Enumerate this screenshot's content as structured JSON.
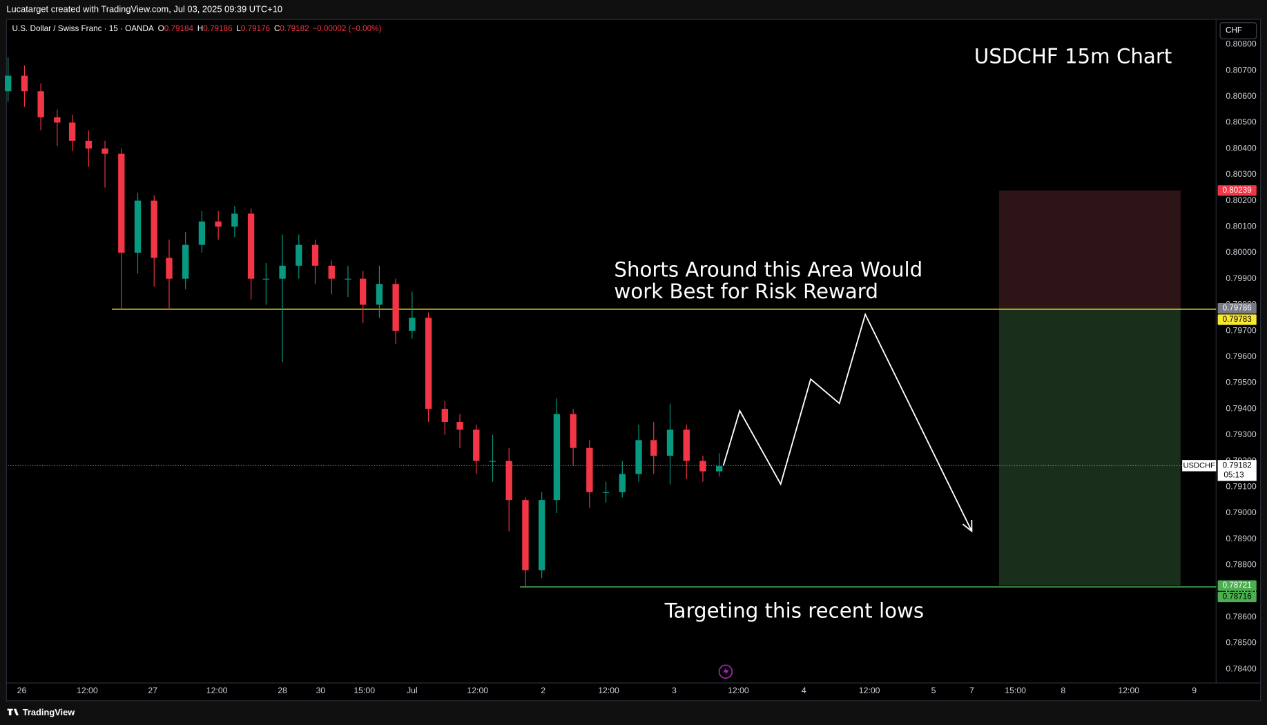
{
  "header": {
    "credit": "Lucatarget created with TradingView.com, Jul 03, 2025 09:39 UTC+10",
    "symbol": "U.S. Dollar / Swiss Franc · 15 · OANDA",
    "ohlc": [
      {
        "label": "O",
        "value": 0.79184
      },
      {
        "label": "H",
        "value": 0.79186
      },
      {
        "label": "L",
        "value": 0.79176
      },
      {
        "label": "C",
        "value": 0.79182
      }
    ],
    "change": "−0.00002 (−0.00%)",
    "currency": "CHF"
  },
  "footer": {
    "brand": "TradingView"
  },
  "chart_data": {
    "type": "candlestick",
    "title": "USDCHF 15m Chart",
    "annotations": [
      {
        "lines": [
          "Shorts Around this Area Would",
          "work Best for Risk Reward"
        ]
      },
      {
        "lines": [
          "Targeting this recent lows"
        ]
      }
    ],
    "up_color": "#089981",
    "down_color": "#f23645",
    "x": [
      0,
      12,
      24,
      36,
      47,
      59,
      71,
      83,
      95,
      107,
      118,
      130,
      142,
      154,
      166,
      178,
      189,
      201,
      213,
      225,
      237,
      249,
      260,
      272,
      284,
      296,
      308,
      320,
      331,
      343,
      355,
      367,
      379,
      391,
      402,
      414,
      426,
      438,
      450,
      462,
      473,
      485,
      497,
      509,
      521
    ],
    "open": [
      0.8062,
      0.8068,
      0.8062,
      0.8052,
      0.805,
      0.8043,
      0.804,
      0.8038,
      0.8,
      0.802,
      0.7998,
      0.799,
      0.8003,
      0.8012,
      0.801,
      0.8015,
      0.799,
      0.799,
      0.7995,
      0.8003,
      0.7995,
      0.799,
      0.799,
      0.798,
      0.7988,
      0.797,
      0.7975,
      0.794,
      0.7935,
      0.7932,
      0.792,
      0.792,
      0.7905,
      0.7878,
      0.7905,
      0.7938,
      0.7925,
      0.7908,
      0.7908,
      0.7915,
      0.7928,
      0.7922,
      0.7932,
      0.792,
      0.7916
    ],
    "high": [
      0.8075,
      0.8072,
      0.8065,
      0.8055,
      0.8053,
      0.8047,
      0.8043,
      0.804,
      0.8023,
      0.8022,
      0.8005,
      0.8008,
      0.8016,
      0.8016,
      0.8018,
      0.8017,
      0.7996,
      0.8007,
      0.8007,
      0.8005,
      0.7997,
      0.7995,
      0.7993,
      0.7995,
      0.799,
      0.7985,
      0.7977,
      0.7943,
      0.7938,
      0.7934,
      0.793,
      0.7925,
      0.7906,
      0.7908,
      0.7944,
      0.794,
      0.7928,
      0.7912,
      0.792,
      0.7934,
      0.7935,
      0.7942,
      0.7934,
      0.7922,
      0.7923
    ],
    "low": [
      0.8058,
      0.8056,
      0.8047,
      0.8041,
      0.8039,
      0.8033,
      0.8025,
      0.7978,
      0.7992,
      0.7987,
      0.7978,
      0.7986,
      0.8,
      0.8005,
      0.8006,
      0.7982,
      0.798,
      0.7958,
      0.799,
      0.7988,
      0.7984,
      0.7983,
      0.7973,
      0.7975,
      0.7965,
      0.7967,
      0.7935,
      0.793,
      0.7925,
      0.7915,
      0.7912,
      0.7893,
      0.78716,
      0.7875,
      0.79,
      0.7918,
      0.7902,
      0.7904,
      0.7906,
      0.7912,
      0.7915,
      0.7911,
      0.7913,
      0.7912,
      0.7914
    ],
    "close": [
      0.8068,
      0.8062,
      0.8052,
      0.805,
      0.8043,
      0.804,
      0.8038,
      0.8,
      0.802,
      0.7998,
      0.799,
      0.8003,
      0.8012,
      0.801,
      0.8015,
      0.799,
      0.799,
      0.7995,
      0.8003,
      0.7995,
      0.799,
      0.799,
      0.798,
      0.7988,
      0.797,
      0.7975,
      0.794,
      0.7935,
      0.7932,
      0.792,
      0.792,
      0.7905,
      0.7878,
      0.7905,
      0.7938,
      0.7925,
      0.7908,
      0.7908,
      0.7915,
      0.7928,
      0.7922,
      0.7932,
      0.792,
      0.7916,
      0.7918
    ],
    "xlim": [
      0,
      885
    ],
    "ylim": [
      0.78347,
      0.8089
    ],
    "grid": false,
    "xticks": [
      {
        "value": 10,
        "label": "26"
      },
      {
        "value": 58,
        "label": "12:00"
      },
      {
        "value": 106,
        "label": "27"
      },
      {
        "value": 153,
        "label": "12:00"
      },
      {
        "value": 201,
        "label": "28"
      },
      {
        "value": 229,
        "label": "30"
      },
      {
        "value": 261,
        "label": "15:00"
      },
      {
        "value": 296,
        "label": "Jul"
      },
      {
        "value": 344,
        "label": "12:00"
      },
      {
        "value": 392,
        "label": "2"
      },
      {
        "value": 440,
        "label": "12:00"
      },
      {
        "value": 488,
        "label": "3"
      },
      {
        "value": 535,
        "label": "12:00"
      },
      {
        "value": 583,
        "label": "4"
      },
      {
        "value": 631,
        "label": "12:00"
      },
      {
        "value": 678,
        "label": "5"
      },
      {
        "value": 706,
        "label": "7"
      },
      {
        "value": 738,
        "label": "15:00"
      },
      {
        "value": 773,
        "label": "8"
      },
      {
        "value": 821,
        "label": "12:00"
      },
      {
        "value": 869,
        "label": "9"
      }
    ],
    "yticks": [
      {
        "value": 0.784,
        "label": "0.78400"
      },
      {
        "value": 0.785,
        "label": "0.78500"
      },
      {
        "value": 0.786,
        "label": "0.78600"
      },
      {
        "value": 0.787,
        "label": "0.78700"
      },
      {
        "value": 0.788,
        "label": "0.78800"
      },
      {
        "value": 0.789,
        "label": "0.78900"
      },
      {
        "value": 0.79,
        "label": "0.79000"
      },
      {
        "value": 0.791,
        "label": "0.79100"
      },
      {
        "value": 0.792,
        "label": "0.79200"
      },
      {
        "value": 0.793,
        "label": "0.79300"
      },
      {
        "value": 0.794,
        "label": "0.79400"
      },
      {
        "value": 0.795,
        "label": "0.79500"
      },
      {
        "value": 0.796,
        "label": "0.79600"
      },
      {
        "value": 0.797,
        "label": "0.79700"
      },
      {
        "value": 0.798,
        "label": "0.79800"
      },
      {
        "value": 0.799,
        "label": "0.79900"
      },
      {
        "value": 0.8,
        "label": "0.80000"
      },
      {
        "value": 0.801,
        "label": "0.80100"
      },
      {
        "value": 0.802,
        "label": "0.80200"
      },
      {
        "value": 0.803,
        "label": "0.80300"
      },
      {
        "value": 0.804,
        "label": "0.80400"
      },
      {
        "value": 0.805,
        "label": "0.80500"
      },
      {
        "value": 0.806,
        "label": "0.80600"
      },
      {
        "value": 0.807,
        "label": "0.80700"
      },
      {
        "value": 0.808,
        "label": "0.80800"
      }
    ],
    "lines": [
      {
        "value": 0.79783,
        "x": [
          76,
          885
        ],
        "color": "#f7e733"
      },
      {
        "value": 0.78716,
        "x": [
          375,
          885
        ],
        "color": "#4caf50"
      }
    ],
    "position": {
      "x": [
        726,
        859
      ],
      "stop": 0.80239,
      "entry": 0.79786,
      "target": 0.78721,
      "stop_color": "#f23645",
      "entry_color": "#787b86",
      "target_color": "#4caf50"
    },
    "projection": {
      "x": [
        524,
        536,
        566,
        588,
        609,
        628,
        706
      ],
      "values": [
        0.79182,
        0.79393,
        0.79111,
        0.79514,
        0.79421,
        0.79763,
        0.7893
      ]
    },
    "last": 0.79182,
    "symbol": "USDCHF",
    "countdown": "05:13"
  }
}
